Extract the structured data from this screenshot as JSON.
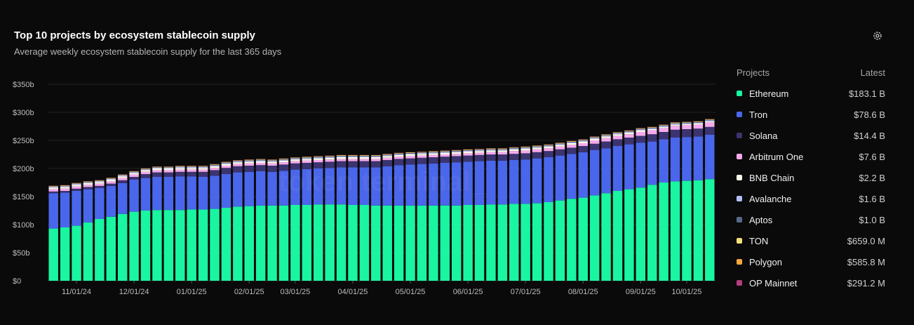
{
  "header": {
    "title": "Top 10 projects by ecosystem stablecoin supply",
    "subtitle": "Average weekly ecosystem stablecoin supply for the last 365 days",
    "settings_icon": "gear-icon"
  },
  "watermark": "token terminal_",
  "legend": {
    "col_projects": "Projects",
    "col_latest": "Latest",
    "items": [
      {
        "name": "Ethereum",
        "value": "$183.1 B",
        "color": "#19f5a0"
      },
      {
        "name": "Tron",
        "value": "$78.6 B",
        "color": "#4a66ea"
      },
      {
        "name": "Solana",
        "value": "$14.4 B",
        "color": "#3b3470"
      },
      {
        "name": "Arbitrum One",
        "value": "$7.6 B",
        "color": "#f6a9ec"
      },
      {
        "name": "BNB Chain",
        "value": "$2.2 B",
        "color": "#fbf7e8"
      },
      {
        "name": "Avalanche",
        "value": "$1.6 B",
        "color": "#b3bdf6"
      },
      {
        "name": "Aptos",
        "value": "$1.0 B",
        "color": "#566b8a"
      },
      {
        "name": "TON",
        "value": "$659.0 M",
        "color": "#f4e07a"
      },
      {
        "name": "Polygon",
        "value": "$585.8 M",
        "color": "#f5a63d"
      },
      {
        "name": "OP Mainnet",
        "value": "$291.2 M",
        "color": "#b33d7e"
      }
    ]
  },
  "chart_data": {
    "type": "bar",
    "stacked": true,
    "ylim": [
      0,
      350
    ],
    "yticks": [
      0,
      50,
      100,
      150,
      200,
      250,
      300,
      350
    ],
    "ytick_labels": [
      "$0",
      "$50b",
      "$100b",
      "$150b",
      "$200b",
      "$250b",
      "$300b",
      "$350b"
    ],
    "xtick_labels": [
      "11/01/24",
      "12/01/24",
      "01/01/25",
      "02/01/25",
      "03/01/25",
      "04/01/25",
      "05/01/25",
      "06/01/25",
      "07/01/25",
      "08/01/25",
      "09/01/25",
      "10/01/25"
    ],
    "xtick_positions": [
      2,
      7,
      12,
      17,
      21,
      26,
      31,
      36,
      41,
      46,
      51,
      55
    ],
    "grid": true,
    "legend_position": "right",
    "colors": [
      "#19f5a0",
      "#4a66ea",
      "#3b3470",
      "#f6a9ec",
      "#fbf7e8",
      "#b3bdf6",
      "#566b8a",
      "#f4e07a",
      "#f5a63d",
      "#b33d7e"
    ],
    "series": [
      {
        "name": "Ethereum",
        "values": [
          93,
          95,
          98,
          104,
          110,
          114,
          119,
          123,
          125,
          126,
          126,
          126,
          127,
          127,
          128,
          130,
          132,
          133,
          134,
          134,
          134,
          135,
          135,
          136,
          136,
          136,
          135,
          135,
          134,
          134,
          134,
          134,
          134,
          134,
          134,
          134,
          135,
          135,
          136,
          136,
          137,
          137,
          138,
          140,
          143,
          146,
          148,
          152,
          156,
          160,
          163,
          166,
          171,
          175,
          177,
          178,
          179,
          181
        ]
      },
      {
        "name": "Tron",
        "values": [
          63,
          62,
          62,
          59,
          55,
          55,
          55,
          57,
          58,
          59,
          59,
          60,
          59,
          58,
          59,
          60,
          61,
          61,
          61,
          60,
          62,
          63,
          64,
          64,
          65,
          66,
          67,
          67,
          68,
          70,
          72,
          73,
          74,
          75,
          76,
          77,
          77,
          78,
          78,
          78,
          78,
          79,
          80,
          80,
          80,
          80,
          81,
          81,
          80,
          80,
          80,
          80,
          77,
          77,
          78,
          78,
          78,
          79
        ]
      },
      {
        "name": "Solana",
        "values": [
          3,
          3,
          4,
          4,
          4,
          4,
          5,
          5,
          7,
          8,
          8,
          8,
          8,
          9,
          10,
          11,
          11,
          11,
          11,
          11,
          11,
          11,
          11,
          11,
          11,
          11,
          11,
          11,
          11,
          11,
          11,
          11,
          11,
          11,
          11,
          11,
          11,
          11,
          11,
          11,
          11,
          11,
          11,
          11,
          11,
          11,
          11,
          11,
          12,
          12,
          12,
          12,
          13,
          13,
          14,
          14,
          14,
          14
        ]
      },
      {
        "name": "Arbitrum One",
        "values": [
          4,
          4,
          4,
          4,
          4,
          4,
          4,
          4,
          4,
          4,
          4,
          4,
          4,
          4,
          4,
          4,
          4,
          4,
          4,
          4,
          4,
          4,
          4,
          4,
          4,
          4,
          4,
          4,
          4,
          4,
          4,
          4,
          4,
          4,
          4,
          4,
          4,
          4,
          4,
          4,
          5,
          5,
          5,
          5,
          5,
          5,
          5,
          6,
          6,
          6,
          6,
          7,
          7,
          7,
          7,
          7,
          7,
          8
        ]
      },
      {
        "name": "BNB Chain",
        "values": [
          3,
          3,
          3,
          3,
          3,
          3,
          3,
          3,
          3,
          3,
          3,
          3,
          3,
          3,
          3,
          3,
          3,
          3,
          3,
          3,
          3,
          3,
          3,
          3,
          3,
          3,
          3,
          3,
          3,
          3,
          3,
          3,
          3,
          3,
          3,
          3,
          3,
          3,
          3,
          3,
          3,
          3,
          3,
          3,
          3,
          3,
          3,
          3,
          3,
          3,
          3,
          3,
          2,
          2,
          2,
          2,
          2,
          2
        ]
      },
      {
        "name": "Avalanche",
        "values": [
          1.5,
          1.5,
          1.5,
          1.5,
          1.5,
          1.5,
          1.5,
          1.5,
          1.5,
          1.5,
          1.5,
          1.5,
          1.5,
          1.5,
          1.5,
          1.5,
          1.5,
          1.5,
          1.5,
          1.5,
          1.5,
          1.5,
          1.5,
          1.5,
          1.5,
          1.5,
          1.5,
          1.5,
          1.5,
          1.5,
          1.5,
          1.5,
          1.5,
          1.5,
          1.5,
          1.5,
          1.5,
          1.5,
          1.5,
          1.5,
          1.5,
          1.5,
          1.5,
          1.5,
          1.5,
          1.5,
          1.5,
          1.5,
          1.5,
          1.5,
          1.5,
          1.5,
          1.6,
          1.6,
          1.6,
          1.6,
          1.6,
          1.6
        ]
      },
      {
        "name": "Aptos",
        "values": [
          0.4,
          0.4,
          0.4,
          0.4,
          0.4,
          0.5,
          0.5,
          0.5,
          0.5,
          0.6,
          0.6,
          0.7,
          0.8,
          0.9,
          1,
          1,
          1,
          1,
          1,
          1,
          1,
          1,
          1,
          1,
          1,
          1,
          1,
          1,
          1,
          1,
          1,
          1,
          1,
          1,
          1,
          1,
          1,
          1,
          1,
          1,
          1,
          1,
          1,
          1,
          1,
          1,
          1,
          1,
          1,
          1,
          1,
          1,
          1,
          1,
          1,
          1,
          1,
          1
        ]
      },
      {
        "name": "TON",
        "values": [
          0.6,
          0.6,
          0.6,
          0.6,
          0.6,
          0.6,
          0.6,
          0.6,
          0.6,
          0.6,
          0.6,
          0.6,
          0.6,
          0.6,
          0.6,
          0.6,
          0.6,
          0.6,
          0.6,
          0.6,
          0.6,
          0.6,
          0.6,
          0.6,
          0.6,
          0.6,
          0.6,
          0.6,
          0.6,
          0.6,
          0.6,
          0.6,
          0.6,
          0.6,
          0.6,
          0.6,
          0.6,
          0.6,
          0.6,
          0.6,
          0.6,
          0.6,
          0.6,
          0.6,
          0.6,
          0.6,
          0.6,
          0.6,
          0.6,
          0.6,
          0.6,
          0.6,
          0.7,
          0.7,
          0.7,
          0.7,
          0.7,
          0.7
        ]
      },
      {
        "name": "Polygon",
        "values": [
          0.6,
          0.6,
          0.6,
          0.6,
          0.6,
          0.6,
          0.6,
          0.6,
          0.6,
          0.6,
          0.6,
          0.6,
          0.6,
          0.6,
          0.6,
          0.6,
          0.6,
          0.6,
          0.6,
          0.6,
          0.6,
          0.6,
          0.6,
          0.6,
          0.6,
          0.6,
          0.6,
          0.6,
          0.6,
          0.6,
          0.6,
          0.6,
          0.6,
          0.6,
          0.6,
          0.6,
          0.6,
          0.6,
          0.6,
          0.6,
          0.6,
          0.6,
          0.6,
          0.6,
          0.6,
          0.6,
          0.6,
          0.6,
          0.6,
          0.6,
          0.6,
          0.6,
          0.6,
          0.6,
          0.6,
          0.6,
          0.6,
          0.6
        ]
      },
      {
        "name": "OP Mainnet",
        "values": [
          0.3,
          0.3,
          0.3,
          0.3,
          0.3,
          0.3,
          0.3,
          0.3,
          0.3,
          0.3,
          0.3,
          0.3,
          0.3,
          0.3,
          0.3,
          0.3,
          0.3,
          0.3,
          0.3,
          0.3,
          0.3,
          0.3,
          0.3,
          0.3,
          0.3,
          0.3,
          0.3,
          0.3,
          0.3,
          0.3,
          0.3,
          0.3,
          0.3,
          0.3,
          0.3,
          0.3,
          0.3,
          0.3,
          0.3,
          0.3,
          0.3,
          0.3,
          0.3,
          0.3,
          0.3,
          0.3,
          0.3,
          0.3,
          0.3,
          0.3,
          0.3,
          0.3,
          0.3,
          0.3,
          0.3,
          0.3,
          0.3,
          0.3
        ]
      }
    ]
  }
}
